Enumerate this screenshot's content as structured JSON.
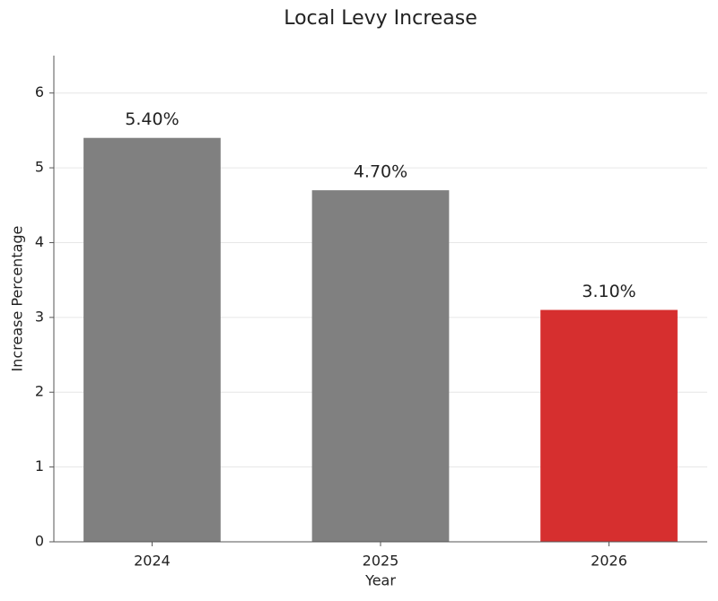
{
  "chart_data": {
    "type": "bar",
    "title": "Local Levy Increase",
    "x_label": "Year",
    "y_label": "Increase Percentage",
    "categories": [
      "2024",
      "2025",
      "2026"
    ],
    "values": [
      5.4,
      4.7,
      3.1
    ],
    "value_labels": [
      "5.40%",
      "4.70%",
      "3.10%"
    ],
    "colors": [
      "#808080",
      "#808080",
      "#d62f2f"
    ],
    "ylim": [
      0,
      6.5
    ],
    "yticks": [
      0,
      1,
      2,
      3,
      4,
      5,
      6
    ],
    "grid": true
  }
}
